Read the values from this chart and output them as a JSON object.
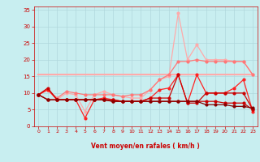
{
  "title": "",
  "xlabel": "Vent moyen/en rafales ( km/h )",
  "background_color": "#c8eef0",
  "grid_color": "#b0d8dc",
  "text_color": "#cc0000",
  "x": [
    0,
    1,
    2,
    3,
    4,
    5,
    6,
    7,
    8,
    9,
    10,
    11,
    12,
    13,
    14,
    15,
    16,
    17,
    18,
    19,
    20,
    21,
    22,
    23
  ],
  "ylim": [
    0,
    36
  ],
  "xlim": [
    -0.5,
    23.5
  ],
  "yticks": [
    0,
    5,
    10,
    15,
    20,
    25,
    30,
    35
  ],
  "xticks": [
    0,
    1,
    2,
    3,
    4,
    5,
    6,
    7,
    8,
    9,
    10,
    11,
    12,
    13,
    14,
    15,
    16,
    17,
    18,
    19,
    20,
    21,
    22,
    23
  ],
  "line1_color": "#ffaaaa",
  "line1_y": [
    15.5,
    15.5,
    15.5,
    15.5,
    15.5,
    15.5,
    15.5,
    15.5,
    15.5,
    15.5,
    15.5,
    15.5,
    15.5,
    15.5,
    15.5,
    15.5,
    15.5,
    15.5,
    15.5,
    15.5,
    15.5,
    15.5,
    15.5,
    15.5
  ],
  "line2_color": "#ffaaaa",
  "line2_y": [
    9.5,
    11.0,
    8.0,
    10.0,
    9.5,
    4.5,
    9.5,
    10.5,
    9.5,
    9.0,
    8.5,
    8.5,
    11.0,
    14.0,
    15.0,
    34.0,
    20.0,
    24.5,
    20.0,
    20.0,
    20.0,
    19.5,
    19.5,
    15.5
  ],
  "line3_color": "#ff7777",
  "line3_y": [
    9.5,
    11.0,
    8.5,
    10.5,
    10.0,
    9.5,
    9.5,
    9.5,
    9.5,
    9.0,
    9.5,
    9.5,
    11.0,
    14.0,
    15.5,
    19.5,
    19.5,
    20.0,
    19.5,
    19.5,
    19.5,
    19.5,
    19.5,
    15.5
  ],
  "line4_color": "#ff2222",
  "line4_y": [
    9.5,
    11.0,
    8.0,
    8.0,
    8.0,
    2.5,
    8.0,
    8.5,
    8.0,
    7.5,
    7.5,
    7.5,
    8.5,
    11.0,
    11.5,
    15.5,
    7.0,
    15.5,
    10.0,
    10.0,
    10.0,
    11.5,
    14.0,
    4.5
  ],
  "line5_color": "#cc0000",
  "line5_y": [
    9.5,
    11.5,
    8.0,
    8.0,
    8.0,
    8.0,
    8.0,
    8.0,
    8.0,
    7.5,
    7.5,
    7.5,
    8.5,
    8.5,
    8.5,
    15.5,
    7.0,
    7.0,
    10.0,
    10.0,
    10.0,
    10.0,
    10.0,
    5.0
  ],
  "line6_color": "#cc0000",
  "line6_y": [
    9.5,
    8.0,
    8.0,
    8.0,
    8.0,
    8.0,
    8.0,
    8.0,
    7.5,
    7.5,
    7.5,
    7.5,
    7.5,
    7.5,
    7.5,
    7.5,
    7.5,
    7.5,
    7.5,
    7.5,
    7.0,
    7.0,
    7.0,
    5.0
  ],
  "line7_color": "#880000",
  "line7_y": [
    9.5,
    8.0,
    8.0,
    8.0,
    8.0,
    8.0,
    8.0,
    8.0,
    7.5,
    7.5,
    7.5,
    7.5,
    7.5,
    7.5,
    7.5,
    7.5,
    7.5,
    7.5,
    6.5,
    6.5,
    6.5,
    6.0,
    6.0,
    5.5
  ],
  "arrow_color": "#cc0000",
  "arrow_chars": [
    "←",
    "←",
    "←",
    "←",
    "←",
    "←",
    "←",
    "←",
    "←",
    "←",
    "←",
    "↑",
    "↑",
    "↗",
    "↑",
    "↗",
    "↖",
    "↖",
    "↖",
    "↖",
    "↖",
    "↖",
    "↖",
    "↗"
  ]
}
